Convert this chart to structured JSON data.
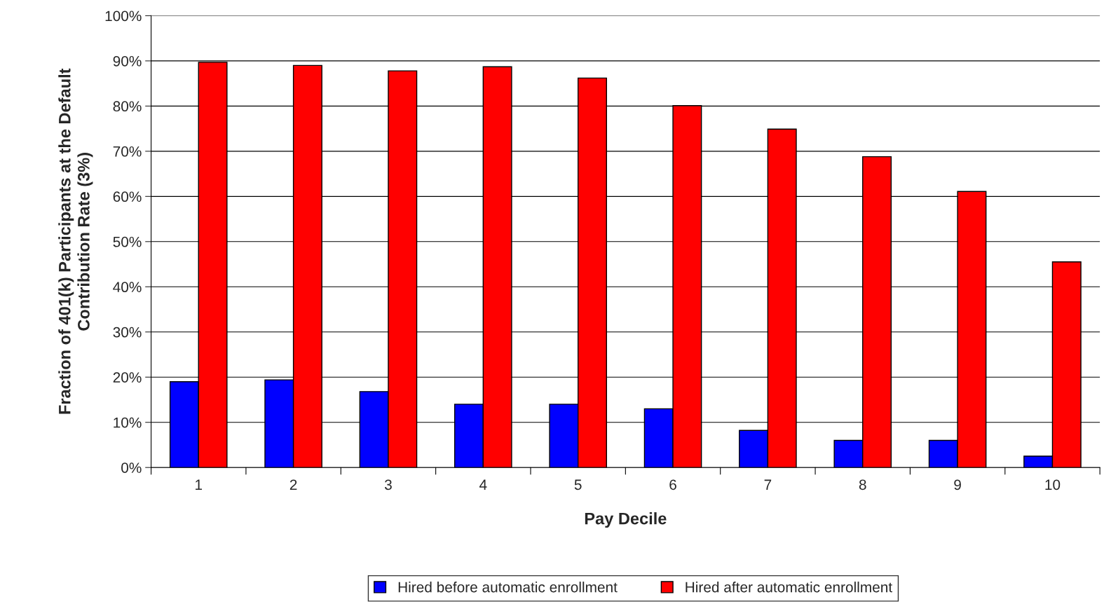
{
  "chart_data": {
    "type": "bar",
    "xlabel": "Pay Decile",
    "ylabel": "Fraction of 401(k) Participants at the Default\nContribution Rate (3%)",
    "categories": [
      "1",
      "2",
      "3",
      "4",
      "5",
      "6",
      "7",
      "8",
      "9",
      "10"
    ],
    "series": [
      {
        "name": "Hired before automatic enrollment",
        "color": "#0000ff",
        "values": [
          19,
          19.4,
          16.8,
          14,
          14,
          13,
          8.2,
          6,
          6,
          2.5
        ]
      },
      {
        "name": "Hired after automatic enrollment",
        "color": "#ff0000",
        "values": [
          89.7,
          89,
          87.8,
          88.7,
          86.2,
          80.1,
          74.9,
          68.8,
          61.1,
          45.5
        ]
      }
    ],
    "ylim": [
      0,
      100
    ],
    "yticks": [
      {
        "value": 0,
        "label": "0%"
      },
      {
        "value": 10,
        "label": "10%"
      },
      {
        "value": 20,
        "label": "20%"
      },
      {
        "value": 30,
        "label": "30%"
      },
      {
        "value": 40,
        "label": "40%"
      },
      {
        "value": 50,
        "label": "50%"
      },
      {
        "value": 60,
        "label": "60%"
      },
      {
        "value": 70,
        "label": "70%"
      },
      {
        "value": 80,
        "label": "80%"
      },
      {
        "value": 90,
        "label": "90%"
      },
      {
        "value": 100,
        "label": "100%"
      }
    ],
    "grid": "y",
    "legend": "bottom"
  }
}
